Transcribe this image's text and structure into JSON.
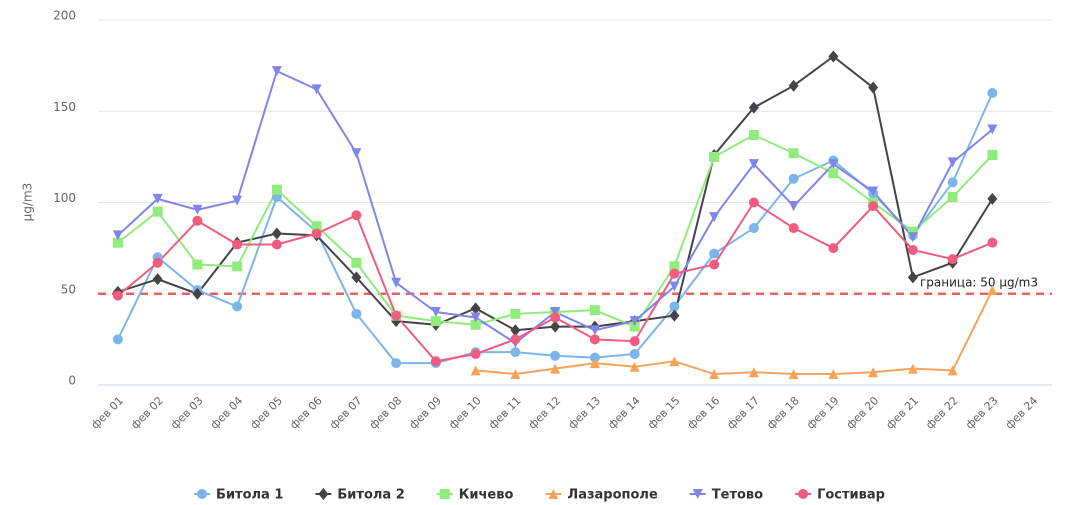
{
  "chart_data": {
    "type": "line",
    "y_axis_label": "μg/m3",
    "categories": [
      "фев 01",
      "фев 02",
      "фев 03",
      "фев 04",
      "фев 05",
      "фев 06",
      "фев 07",
      "фев 08",
      "фев 09",
      "фев 10",
      "фев 11",
      "фев 12",
      "фев 13",
      "фев 14",
      "фев 15",
      "фев 16",
      "фев 17",
      "фев 18",
      "фев 19",
      "фев 20",
      "фев 21",
      "фев 22",
      "фев 23",
      "фев 24"
    ],
    "ylim": [
      0,
      200
    ],
    "yticks": [
      0,
      50,
      100,
      150,
      200
    ],
    "grid": true,
    "threshold": {
      "value": 50,
      "label": "граница: 50 μg/m3",
      "color": "#f06060"
    },
    "legend": "bottom",
    "series": [
      {
        "name": "Битола 1",
        "color": "#7cb5ec",
        "marker": "circle",
        "values": [
          25,
          70,
          52,
          43,
          103,
          84,
          39,
          12,
          12,
          18,
          18,
          16,
          15,
          17,
          43,
          72,
          86,
          113,
          123,
          105,
          82,
          111,
          160,
          null
        ]
      },
      {
        "name": "Битола 2",
        "color": "#434348",
        "marker": "diamond",
        "values": [
          51,
          58,
          50,
          78,
          83,
          82,
          59,
          35,
          33,
          42,
          30,
          32,
          32,
          35,
          38,
          126,
          152,
          164,
          180,
          163,
          59,
          67,
          102,
          null
        ]
      },
      {
        "name": "Кичево",
        "color": "#90ed7d",
        "marker": "square",
        "values": [
          78,
          95,
          66,
          65,
          107,
          87,
          67,
          38,
          35,
          33,
          39,
          40,
          41,
          32,
          65,
          125,
          137,
          127,
          116,
          100,
          84,
          103,
          126,
          null
        ]
      },
      {
        "name": "Лазарополе",
        "color": "#f7a35c",
        "marker": "triangle",
        "values": [
          null,
          null,
          null,
          null,
          null,
          null,
          null,
          null,
          null,
          8,
          6,
          9,
          12,
          10,
          13,
          6,
          7,
          6,
          6,
          7,
          9,
          8,
          52,
          null
        ]
      },
      {
        "name": "Тетово",
        "color": "#8085e9",
        "marker": "triangle-down",
        "values": [
          82,
          102,
          96,
          101,
          172,
          162,
          127,
          56,
          40,
          37,
          23,
          40,
          30,
          35,
          54,
          92,
          121,
          98,
          121,
          106,
          81,
          122,
          140,
          null
        ]
      },
      {
        "name": "Гостивар",
        "color": "#f15c80",
        "marker": "circle",
        "values": [
          49,
          67,
          90,
          77,
          77,
          83,
          93,
          38,
          13,
          17,
          25,
          37,
          25,
          24,
          61,
          66,
          100,
          86,
          75,
          98,
          74,
          69,
          78,
          null
        ]
      }
    ]
  }
}
